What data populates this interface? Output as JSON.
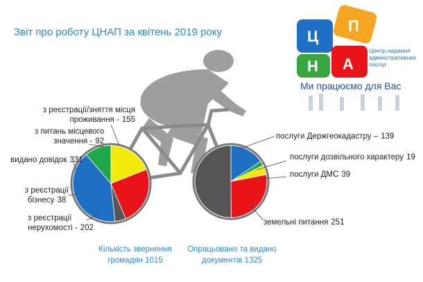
{
  "title": "Звіт про роботу ЦНАП за квітень 2019 року",
  "logo": {
    "letters": [
      "Ц",
      "П",
      "Н",
      "А"
    ],
    "caption": "Центр надання адміністративних послуг",
    "slogan": "Ми працюємо для Вас"
  },
  "chart_data": [
    {
      "type": "pie",
      "categories": [
        "з реєстрації/зняття місця проживання -",
        "з реєстрації нерухомості -",
        "з реєстрації бізнесу",
        "видано довідок",
        "з питань місцевого значення -"
      ],
      "values": [
        155,
        202,
        38,
        331,
        92
      ],
      "colors": [
        "#f2ea0a",
        "#e8141a",
        "#555555",
        "#1f6fc4",
        "#1fa84a"
      ]
    },
    {
      "type": "pie",
      "categories": [
        "послуги Держгеокадастру –",
        "послуги дозвільного характеру",
        "послуги ДМС",
        "земельні питання",
        null
      ],
      "values": [
        139,
        19,
        39,
        251,
        450
      ],
      "colors": [
        "#1f6fc4",
        "#1fa84a",
        "#f2ea0a",
        "#e8141a",
        "#555555"
      ]
    }
  ],
  "totals": [
    {
      "label": "Кількість звернення громадян",
      "value": 1015
    },
    {
      "label": "Опрацьовано та видано документів",
      "value": 1325
    }
  ]
}
